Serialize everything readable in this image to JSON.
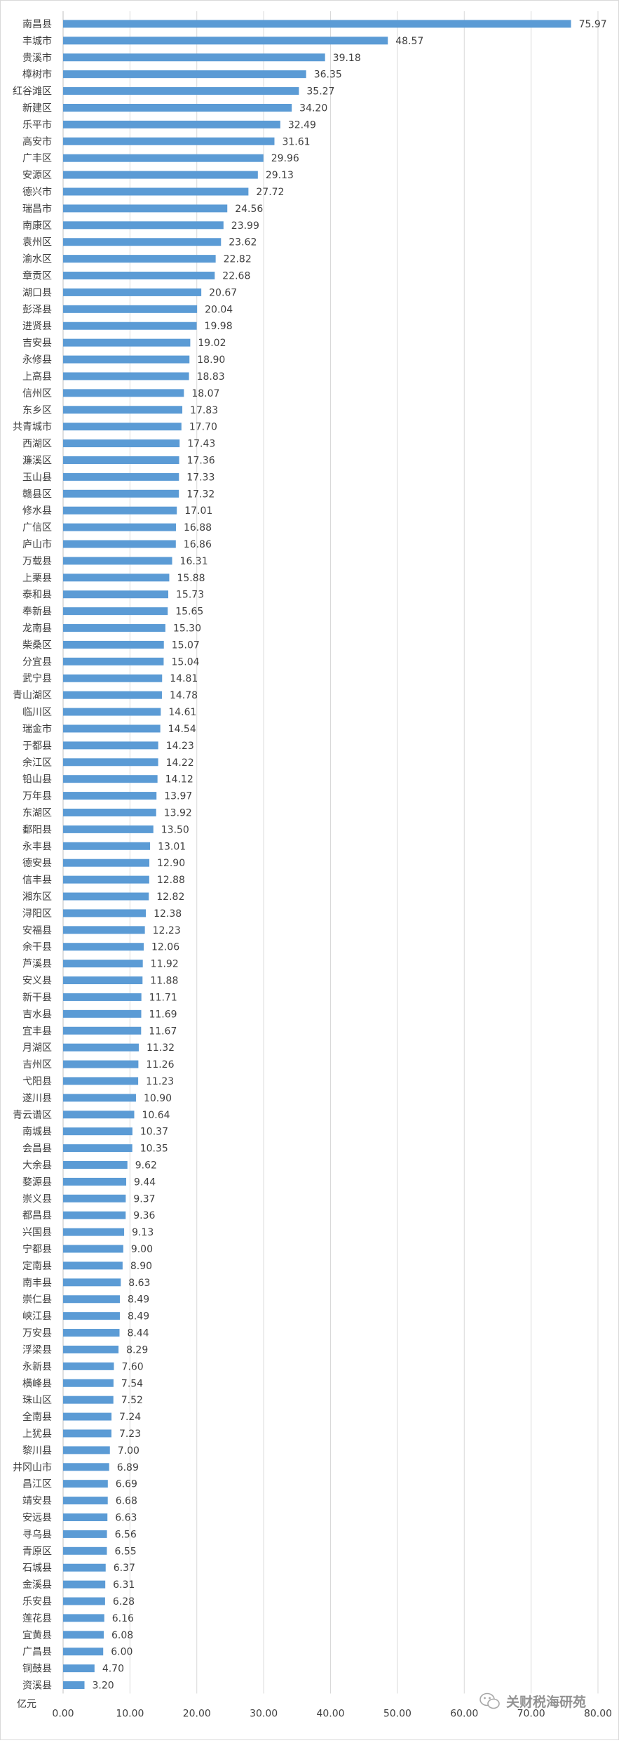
{
  "chart_data": {
    "type": "bar",
    "orientation": "horizontal",
    "categories": [
      "南昌县",
      "丰城市",
      "贵溪市",
      "樟树市",
      "红谷滩区",
      "新建区",
      "乐平市",
      "高安市",
      "广丰区",
      "安源区",
      "德兴市",
      "瑞昌市",
      "南康区",
      "袁州区",
      "渝水区",
      "章贡区",
      "湖口县",
      "彭泽县",
      "进贤县",
      "吉安县",
      "永修县",
      "上高县",
      "信州区",
      "东乡区",
      "共青城市",
      "西湖区",
      "濂溪区",
      "玉山县",
      "赣县区",
      "修水县",
      "广信区",
      "庐山市",
      "万载县",
      "上栗县",
      "泰和县",
      "奉新县",
      "龙南县",
      "柴桑区",
      "分宜县",
      "武宁县",
      "青山湖区",
      "临川区",
      "瑞金市",
      "于都县",
      "余江区",
      "铅山县",
      "万年县",
      "东湖区",
      "鄱阳县",
      "永丰县",
      "德安县",
      "信丰县",
      "湘东区",
      "浔阳区",
      "安福县",
      "余干县",
      "芦溪县",
      "安义县",
      "新干县",
      "吉水县",
      "宜丰县",
      "月湖区",
      "吉州区",
      "弋阳县",
      "遂川县",
      "青云谱区",
      "南城县",
      "会昌县",
      "大余县",
      "婺源县",
      "崇义县",
      "都昌县",
      "兴国县",
      "宁都县",
      "定南县",
      "南丰县",
      "崇仁县",
      "峡江县",
      "万安县",
      "浮梁县",
      "永新县",
      "横峰县",
      "珠山区",
      "全南县",
      "上犹县",
      "黎川县",
      "井冈山市",
      "昌江区",
      "靖安县",
      "安远县",
      "寻乌县",
      "青原区",
      "石城县",
      "金溪县",
      "乐安县",
      "莲花县",
      "宜黄县",
      "广昌县",
      "铜鼓县",
      "资溪县"
    ],
    "values": [
      75.97,
      48.57,
      39.18,
      36.35,
      35.27,
      34.2,
      32.49,
      31.61,
      29.96,
      29.13,
      27.72,
      24.56,
      23.99,
      23.62,
      22.82,
      22.68,
      20.67,
      20.04,
      19.98,
      19.02,
      18.9,
      18.83,
      18.07,
      17.83,
      17.7,
      17.43,
      17.36,
      17.33,
      17.32,
      17.01,
      16.88,
      16.86,
      16.31,
      15.88,
      15.73,
      15.65,
      15.3,
      15.07,
      15.04,
      14.81,
      14.78,
      14.61,
      14.54,
      14.23,
      14.22,
      14.12,
      13.97,
      13.92,
      13.5,
      13.01,
      12.9,
      12.88,
      12.82,
      12.38,
      12.23,
      12.06,
      11.92,
      11.88,
      11.71,
      11.69,
      11.67,
      11.32,
      11.26,
      11.23,
      10.9,
      10.64,
      10.37,
      10.35,
      9.62,
      9.44,
      9.37,
      9.36,
      9.13,
      9.0,
      8.9,
      8.63,
      8.49,
      8.49,
      8.44,
      8.29,
      7.6,
      7.54,
      7.52,
      7.24,
      7.23,
      7.0,
      6.89,
      6.69,
      6.68,
      6.63,
      6.56,
      6.55,
      6.37,
      6.31,
      6.28,
      6.16,
      6.08,
      6.0,
      4.7,
      3.2
    ],
    "value_labels": [
      "75.97",
      "48.57",
      "39.18",
      "36.35",
      "35.27",
      "34.20",
      "32.49",
      "31.61",
      "29.96",
      "29.13",
      "27.72",
      "24.56",
      "23.99",
      "23.62",
      "22.82",
      "22.68",
      "20.67",
      "20.04",
      "19.98",
      "19.02",
      "18.90",
      "18.83",
      "18.07",
      "17.83",
      "17.70",
      "17.43",
      "17.36",
      "17.33",
      "17.32",
      "17.01",
      "16.88",
      "16.86",
      "16.31",
      "15.88",
      "15.73",
      "15.65",
      "15.30",
      "15.07",
      "15.04",
      "14.81",
      "14.78",
      "14.61",
      "14.54",
      "14.23",
      "14.22",
      "14.12",
      "13.97",
      "13.92",
      "13.50",
      "13.01",
      "12.90",
      "12.88",
      "12.82",
      "12.38",
      "12.23",
      "12.06",
      "11.92",
      "11.88",
      "11.71",
      "11.69",
      "11.67",
      "11.32",
      "11.26",
      "11.23",
      "10.90",
      "10.64",
      "10.37",
      "10.35",
      "9.62",
      "9.44",
      "9.37",
      "9.36",
      "9.13",
      "9.00",
      "8.90",
      "8.63",
      "8.49",
      "8.49",
      "8.44",
      "8.29",
      "7.60",
      "7.54",
      "7.52",
      "7.24",
      "7.23",
      "7.00",
      "6.89",
      "6.69",
      "6.68",
      "6.63",
      "6.56",
      "6.55",
      "6.37",
      "6.31",
      "6.28",
      "6.16",
      "6.08",
      "6.00",
      "4.70",
      "3.20"
    ],
    "xlim": [
      0,
      80
    ],
    "x_ticks": [
      "0.00",
      "10.00",
      "20.00",
      "30.00",
      "40.00",
      "50.00",
      "60.00",
      "70.00",
      "80.00"
    ],
    "unit_label": "亿元",
    "grid": "vertical",
    "legend": "none",
    "bar_color": "#5B9BD5",
    "grid_color": "#D9D9D9",
    "text_color": "#404040"
  },
  "watermark": {
    "text": "关财税海研苑",
    "icon": "wechat-icon"
  }
}
